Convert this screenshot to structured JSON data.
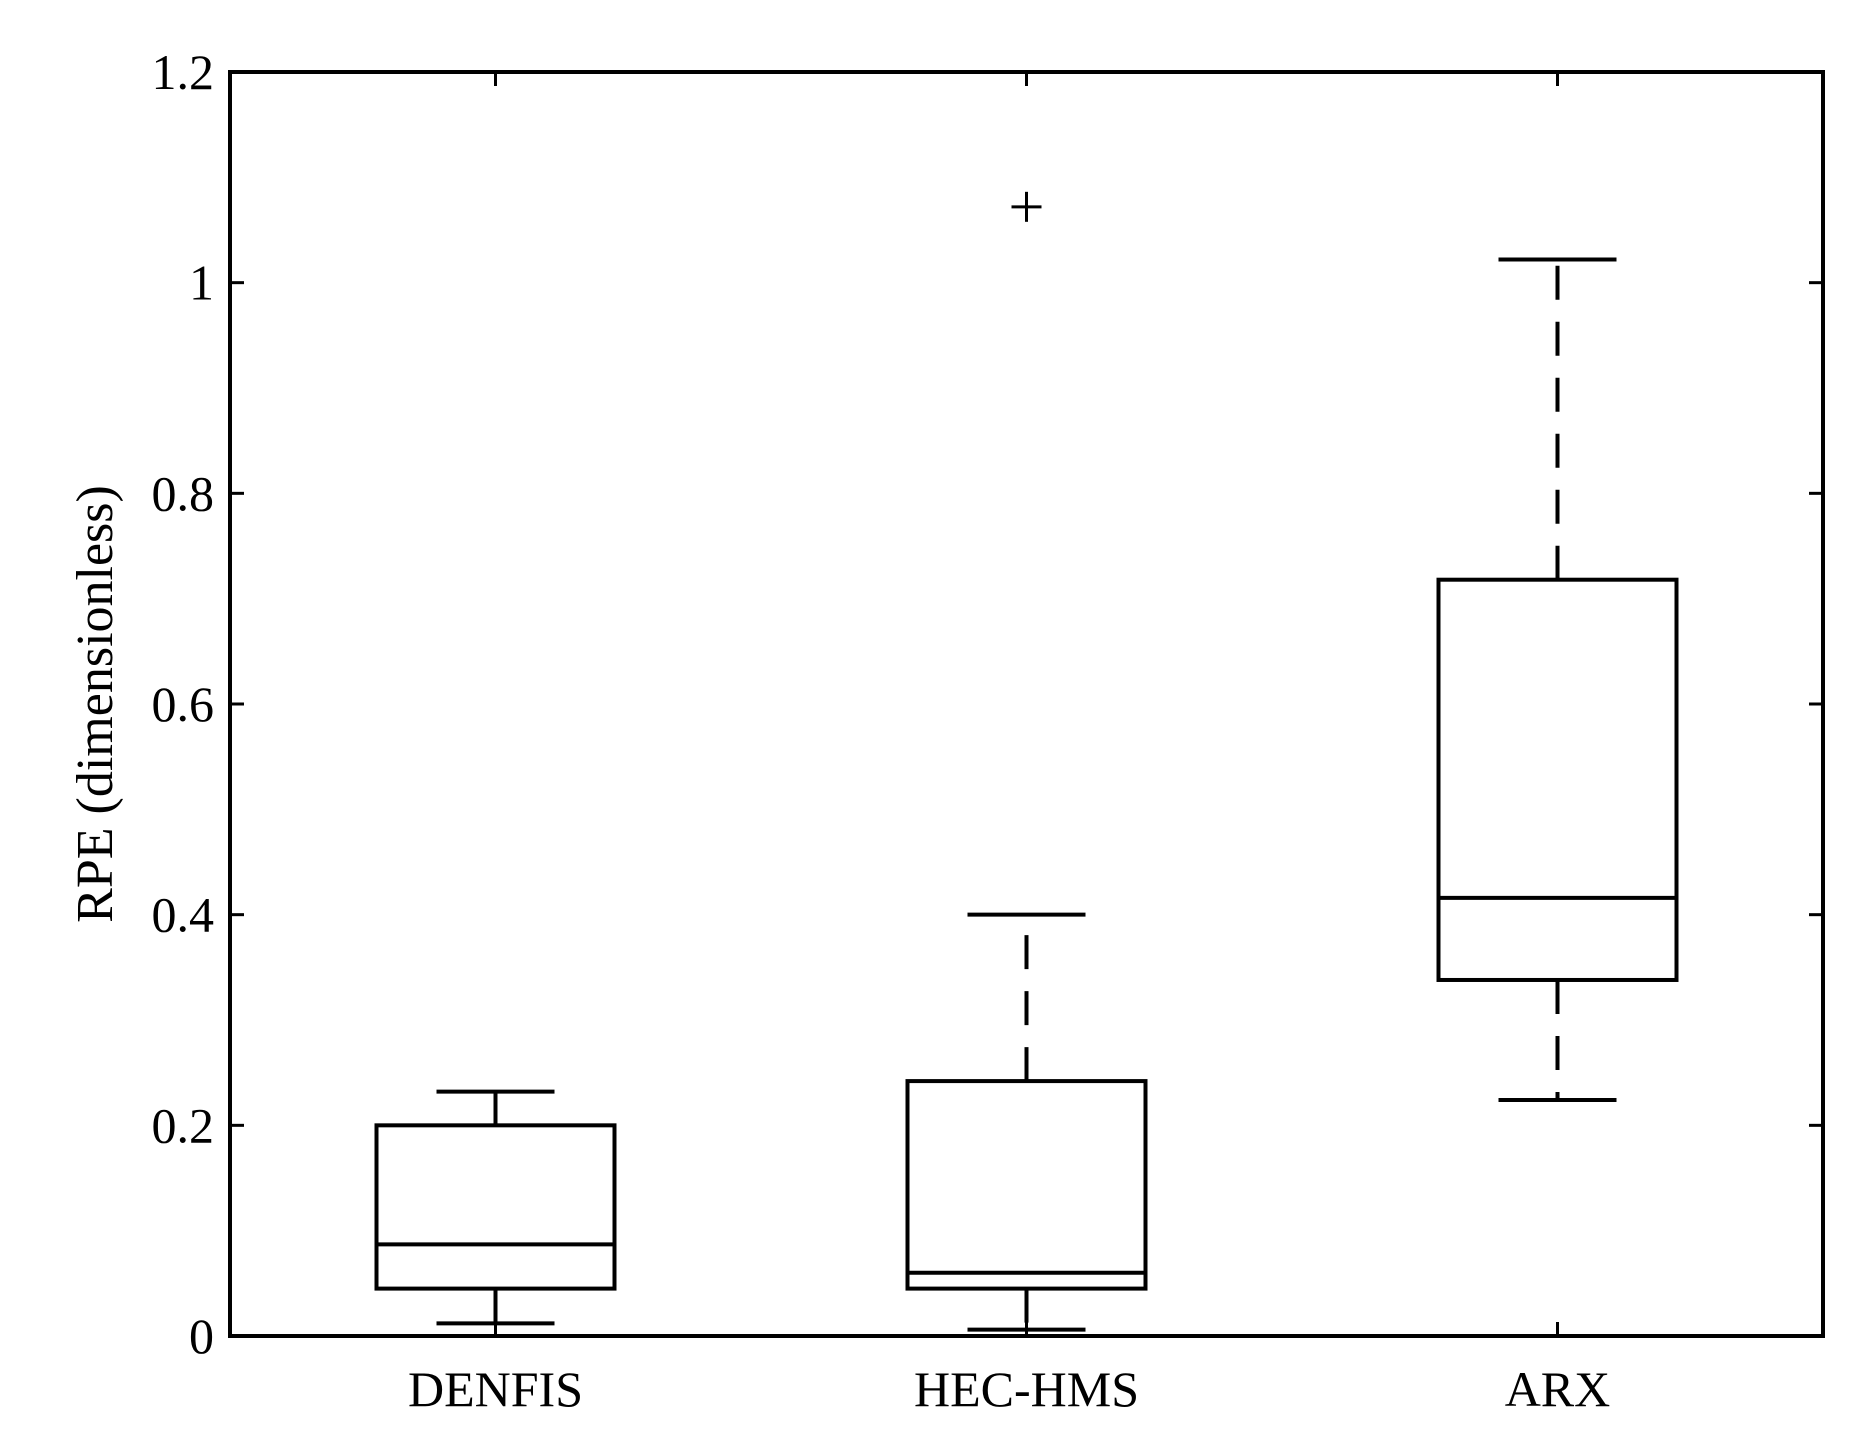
{
  "chart_data": {
    "type": "box",
    "ylabel": "RPE (dimensionless)",
    "xlabel": "",
    "ylim": [
      0,
      1.2
    ],
    "yticks": [
      "0",
      "0.2",
      "0.4",
      "0.6",
      "0.8",
      "1",
      "1.2"
    ],
    "ytick_values": [
      0,
      0.2,
      0.4,
      0.6,
      0.8,
      1.0,
      1.2
    ],
    "categories": [
      "DENFIS",
      "HEC-HMS",
      "ARX"
    ],
    "boxes": [
      {
        "name": "DENFIS",
        "whisker_low": 0.012,
        "q1": 0.045,
        "median": 0.087,
        "q3": 0.2,
        "whisker_high": 0.232,
        "outliers": []
      },
      {
        "name": "HEC-HMS",
        "whisker_low": 0.006,
        "q1": 0.045,
        "median": 0.06,
        "q3": 0.242,
        "whisker_high": 0.4,
        "outliers": [
          1.072
        ]
      },
      {
        "name": "ARX",
        "whisker_low": 0.224,
        "q1": 0.338,
        "median": 0.416,
        "q3": 0.718,
        "whisker_high": 1.022,
        "outliers": []
      }
    ],
    "grid": false,
    "legend": "none"
  }
}
